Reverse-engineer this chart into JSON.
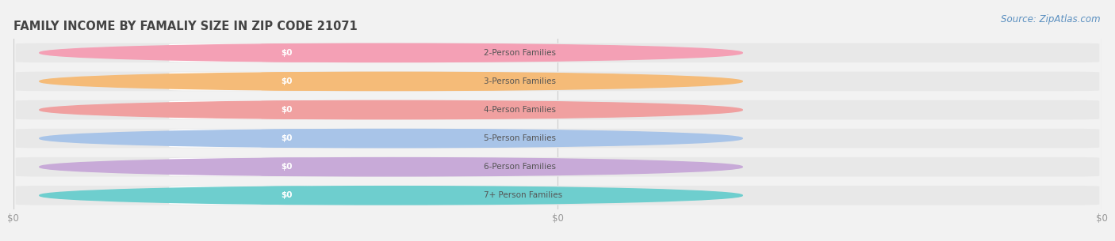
{
  "title": "FAMILY INCOME BY FAMALIY SIZE IN ZIP CODE 21071",
  "source": "Source: ZipAtlas.com",
  "categories": [
    "2-Person Families",
    "3-Person Families",
    "4-Person Families",
    "5-Person Families",
    "6-Person Families",
    "7+ Person Families"
  ],
  "values": [
    0,
    0,
    0,
    0,
    0,
    0
  ],
  "bar_colors": [
    "#f4a0b5",
    "#f5bb78",
    "#f0a0a0",
    "#a8c4e8",
    "#c8aad8",
    "#6ecece"
  ],
  "bg_color": "#f2f2f2",
  "bar_bg_color": "#e8e8e8",
  "white_pill_color": "#ffffff",
  "title_color": "#444444",
  "source_color": "#5a8fc0",
  "label_text_color": "#555555",
  "value_text_color": "#ffffff",
  "tick_label_color": "#999999",
  "grid_color": "#cccccc",
  "title_fontsize": 10.5,
  "source_fontsize": 8.5,
  "label_fontsize": 7.5,
  "tick_fontsize": 8.5
}
